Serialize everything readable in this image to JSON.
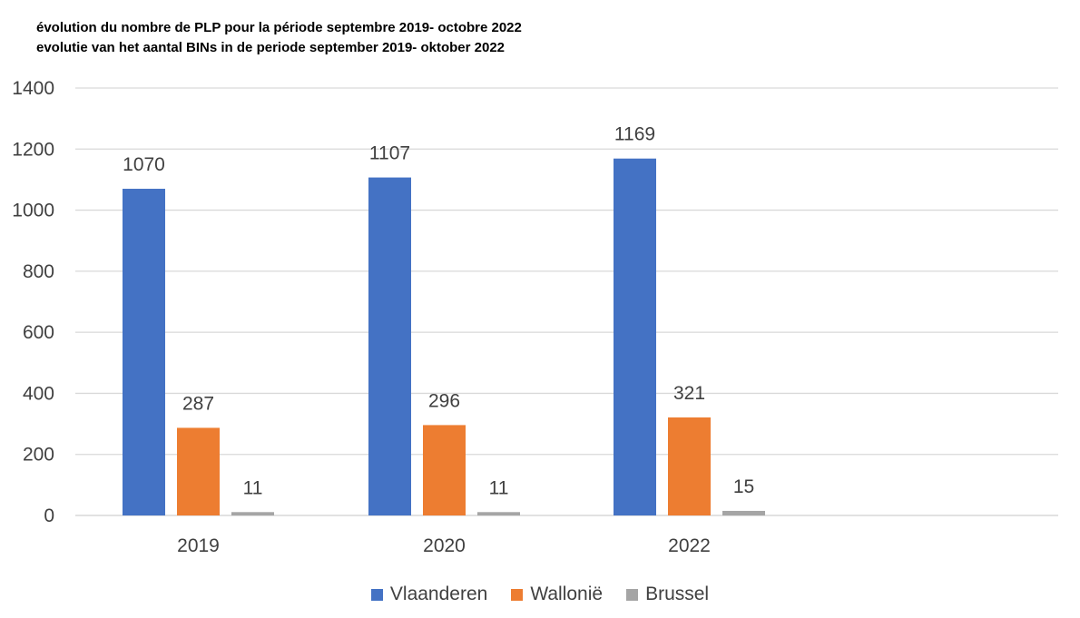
{
  "chart_data": {
    "type": "bar",
    "title": "évolution du nombre de PLP pour la période septembre 2019- octobre 2022",
    "subtitle": "evolutie van het aantal BINs in de periode september 2019- oktober 2022",
    "categories": [
      "2019",
      "2020",
      "2022"
    ],
    "series": [
      {
        "name": "Vlaanderen",
        "color": "#4472C4",
        "values": [
          1070,
          1107,
          1169
        ]
      },
      {
        "name": "Wallonië",
        "color": "#ED7D31",
        "values": [
          287,
          296,
          321
        ]
      },
      {
        "name": "Brussel",
        "color": "#A5A5A5",
        "values": [
          11,
          11,
          15
        ]
      }
    ],
    "ylim": [
      0,
      1400
    ],
    "yticks": [
      0,
      200,
      400,
      600,
      800,
      1000,
      1200,
      1400
    ],
    "grid": true,
    "legend": "bottom",
    "data_labels": true
  }
}
